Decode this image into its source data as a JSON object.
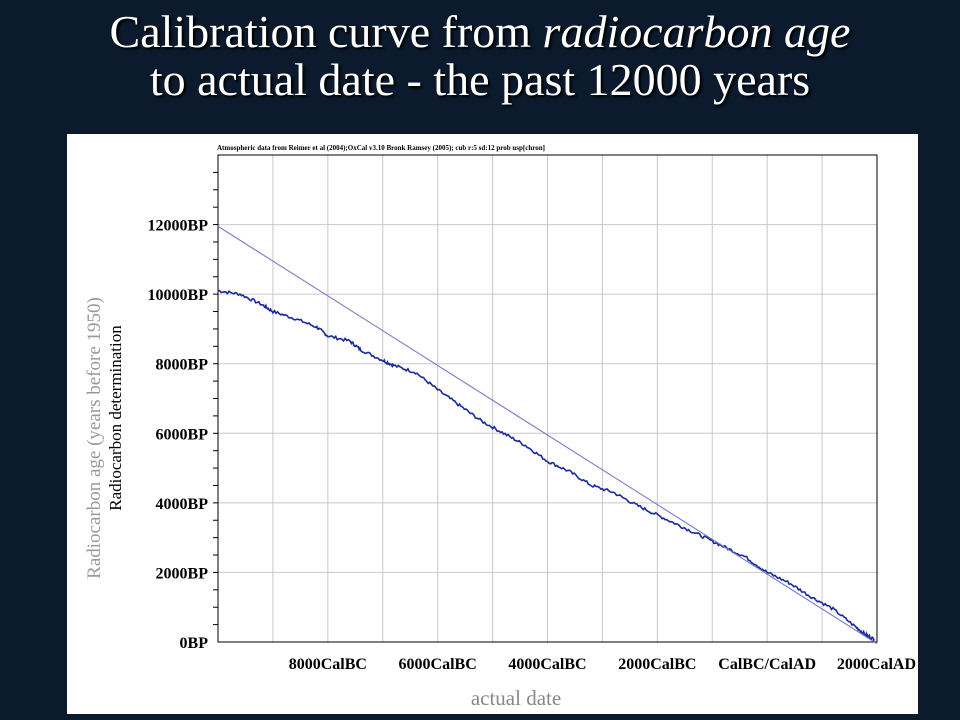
{
  "slide": {
    "title_line1_plain": "Calibration curve from ",
    "title_line1_italic": "radiocarbon age",
    "title_line2": "to actual date - the past 12000 years"
  },
  "chart_data": {
    "type": "line",
    "source_note": "Atmospheric data from Reimer et al (2004);OxCal v3.10 Bronk Ramsey (2005); cub r:5 sd:12 prob usp[chron]",
    "xlabel": "actual date",
    "ylabel_outer": "Radiocarbon age (years before 1950)",
    "ylabel_inner": "Radiocarbon determination",
    "x_unit": "calendar year (negative = BC, positive = AD)",
    "y_unit": "radiocarbon years BP",
    "xlim": [
      -10000,
      2000
    ],
    "ylim": [
      0,
      14000
    ],
    "grid": true,
    "y_ticks": [
      {
        "value": 0,
        "label": "0BP"
      },
      {
        "value": 2000,
        "label": "2000BP"
      },
      {
        "value": 4000,
        "label": "4000BP"
      },
      {
        "value": 6000,
        "label": "6000BP"
      },
      {
        "value": 8000,
        "label": "8000BP"
      },
      {
        "value": 10000,
        "label": "10000BP"
      },
      {
        "value": 12000,
        "label": "12000BP"
      }
    ],
    "x_ticks": [
      {
        "value": -8000,
        "label": "8000CalBC"
      },
      {
        "value": -6000,
        "label": "6000CalBC"
      },
      {
        "value": -4000,
        "label": "4000CalBC"
      },
      {
        "value": -2000,
        "label": "2000CalBC"
      },
      {
        "value": 0,
        "label": "CalBC/CalAD"
      },
      {
        "value": 2000,
        "label": "2000CalAD"
      }
    ],
    "series": [
      {
        "color": "#1a2a9c",
        "x": [
          -10000,
          -9600,
          -9200,
          -9000,
          -8600,
          -8200,
          -8000,
          -7600,
          -7400,
          -7000,
          -6800,
          -6400,
          -6000,
          -5600,
          -5200,
          -4800,
          -4400,
          -4000,
          -3600,
          -3200,
          -2800,
          -2400,
          -2000,
          -1600,
          -1200,
          -800,
          -400,
          0,
          400,
          800,
          1200,
          1600,
          1800,
          1950
        ],
        "y": [
          10100,
          10000,
          9700,
          9500,
          9300,
          9050,
          8800,
          8650,
          8400,
          8100,
          7950,
          7750,
          7250,
          6800,
          6350,
          6000,
          5650,
          5200,
          4900,
          4500,
          4300,
          3950,
          3650,
          3350,
          3050,
          2750,
          2450,
          2000,
          1700,
          1300,
          950,
          450,
          200,
          80
        ]
      },
      {
        "color": "#6a72c8",
        "x": [
          -10000,
          2000
        ],
        "y": [
          11950,
          -50
        ]
      }
    ]
  }
}
